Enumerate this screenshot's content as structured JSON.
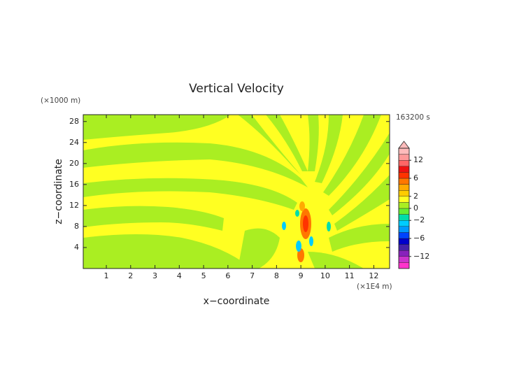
{
  "chart_data": {
    "type": "contour",
    "title": "Vertical Velocity",
    "x_label": "x−coordinate",
    "y_label": "z−coordinate",
    "x_unit": "(×1E4 m)",
    "y_unit": "(×1000 m)",
    "time_label": "163200 s",
    "xlim": [
      0.05,
      12.65
    ],
    "ylim": [
      0,
      29.3
    ],
    "xticks": [
      1,
      2,
      3,
      4,
      5,
      6,
      7,
      8,
      9,
      10,
      11,
      12
    ],
    "yticks": [
      4,
      8,
      12,
      16,
      20,
      24,
      28
    ],
    "levels": [
      -16,
      -14,
      -12,
      -10,
      -8,
      -6,
      -4,
      -3,
      -2,
      -1,
      0,
      1,
      2,
      3,
      4,
      6,
      8,
      10,
      12,
      14,
      16
    ],
    "colors": [
      "#ff33cc",
      "#cc33cc",
      "#8822bb",
      "#4422aa",
      "#0000cc",
      "#0044ff",
      "#0099ff",
      "#00ccff",
      "#00ddaa",
      "#66ee33",
      "#aaee22",
      "#ffff22",
      "#ffcc00",
      "#ffaa00",
      "#ff7700",
      "#ff3300",
      "#ee1111",
      "#ff6666",
      "#ff9999",
      "#ffbbbb"
    ],
    "colorbar_ticks": [
      {
        "value": -12,
        "label": "−12"
      },
      {
        "value": -6,
        "label": "−6"
      },
      {
        "value": -2,
        "label": "−2"
      },
      0,
      2,
      6,
      12
    ]
  }
}
